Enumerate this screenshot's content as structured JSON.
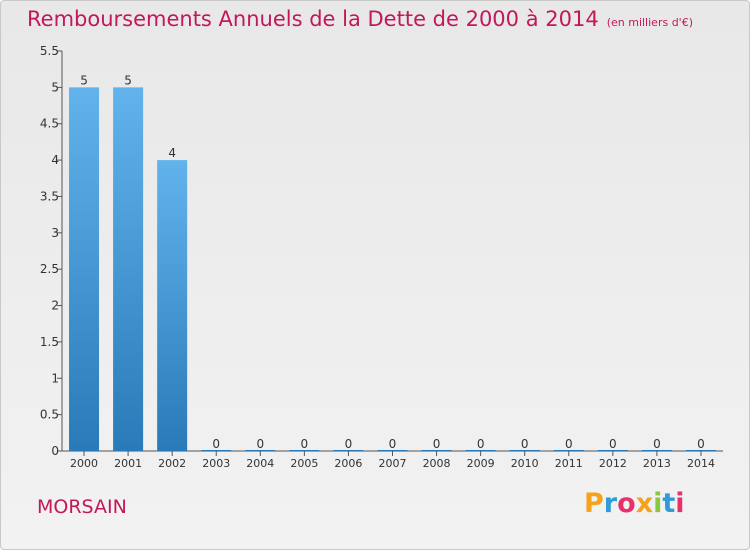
{
  "page": {
    "title": "Remboursements Annuels de la Dette de 2000 à 2014",
    "unit": "(en milliers d'€)",
    "commune": "MORSAIN",
    "logo": "Proxiti"
  },
  "colors": {
    "title": "#c2185b",
    "bar_top": "#62b3ec",
    "bar_bottom": "#2a7ab9",
    "axis": "#555555"
  },
  "chart_data": {
    "type": "bar",
    "categories": [
      "2000",
      "2001",
      "2002",
      "2003",
      "2004",
      "2005",
      "2006",
      "2007",
      "2008",
      "2009",
      "2010",
      "2011",
      "2012",
      "2013",
      "2014"
    ],
    "values": [
      5,
      5,
      4,
      0,
      0,
      0,
      0,
      0,
      0,
      0,
      0,
      0,
      0,
      0,
      0
    ],
    "ylim": [
      0,
      5.5
    ],
    "yticks": [
      "0",
      "0.5",
      "1",
      "1.5",
      "2",
      "2.5",
      "3",
      "3.5",
      "4",
      "4.5",
      "5",
      "5.5"
    ],
    "title": "Remboursements Annuels de la Dette de 2000 à 2014",
    "xlabel": "",
    "ylabel": "",
    "grid": false
  }
}
